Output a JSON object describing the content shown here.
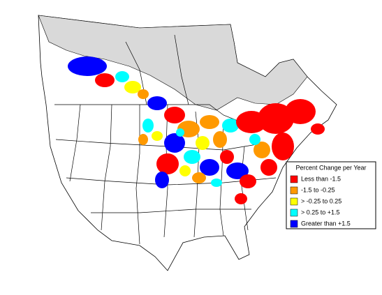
{
  "legend": {
    "title": "Percent Change per Year",
    "items": [
      {
        "label": "Less than -1.5",
        "color": "#ff0000"
      },
      {
        "label": "-1.5 to -0.25",
        "color": "#ff9900"
      },
      {
        "label": "> -0.25 to 0.25",
        "color": "#ffff00"
      },
      {
        "label": "> 0.25 to +1.5",
        "color": "#00ffff"
      },
      {
        "label": "Greater than +1.5",
        "color": "#0000ff"
      }
    ]
  }
}
